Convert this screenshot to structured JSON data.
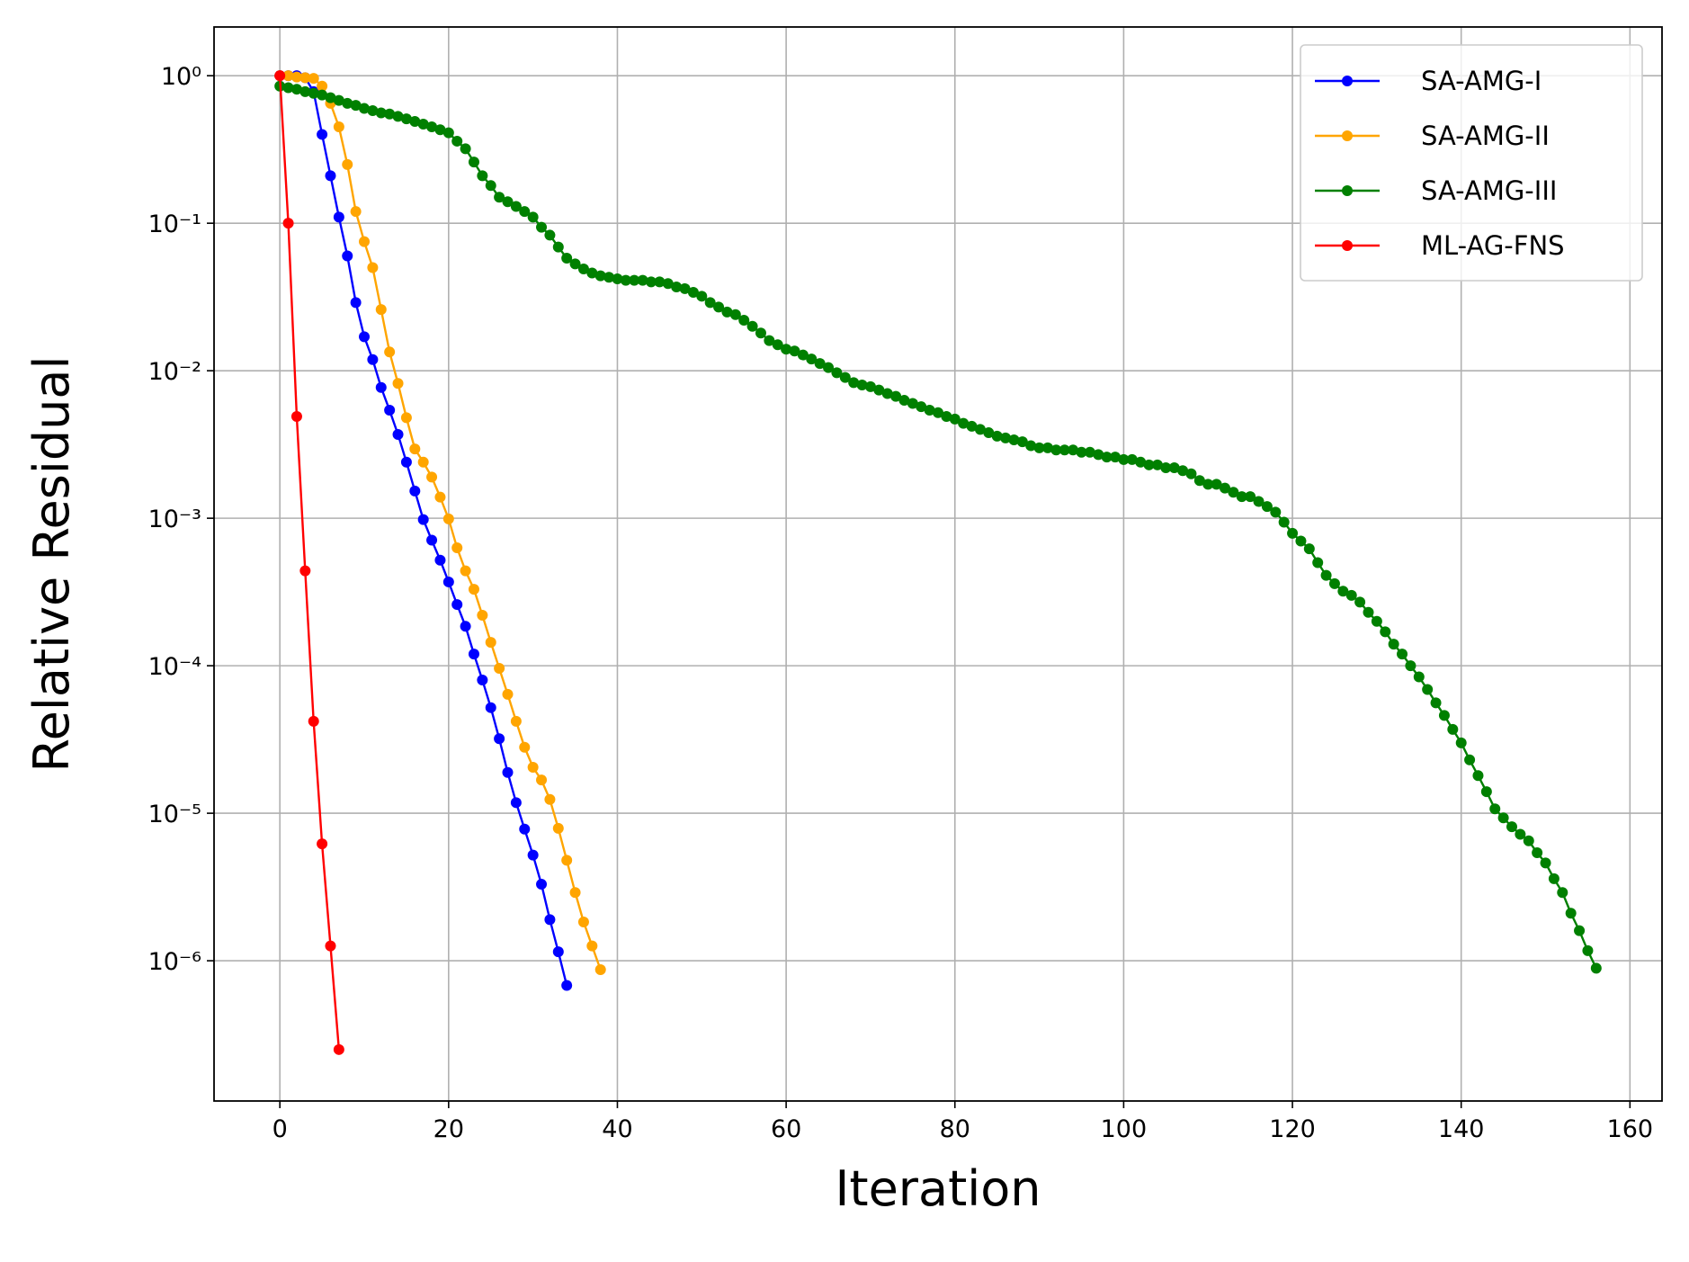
{
  "chart_data": {
    "type": "line",
    "xlabel": "Iteration",
    "ylabel": "Relative Residual",
    "xlim": [
      -7.8,
      163.8
    ],
    "ylim": [
      1.12e-07,
      2.14
    ],
    "yscale": "log",
    "grid": true,
    "legend": "upper right",
    "xticks": [
      0,
      20,
      40,
      60,
      80,
      100,
      120,
      140,
      160
    ],
    "yticks": [
      {
        "value": 1e-06,
        "label": "10⁻⁶"
      },
      {
        "value": 1e-05,
        "label": "10⁻⁵"
      },
      {
        "value": 0.0001,
        "label": "10⁻⁴"
      },
      {
        "value": 0.001,
        "label": "10⁻³"
      },
      {
        "value": 0.01,
        "label": "10⁻²"
      },
      {
        "value": 0.1,
        "label": "10⁻¹"
      },
      {
        "value": 1,
        "label": "10⁰"
      }
    ],
    "series": [
      {
        "name": "SA-AMG-I",
        "color": "#0000ff",
        "x": [
          0,
          1,
          2,
          3,
          4,
          5,
          6,
          7,
          8,
          9,
          10,
          11,
          12,
          13,
          14,
          15,
          16,
          17,
          18,
          19,
          20,
          21,
          22,
          23,
          24,
          25,
          26,
          27,
          28,
          29,
          30,
          31,
          32,
          33,
          34
        ],
        "values": [
          1,
          1,
          1,
          0.97,
          0.78,
          0.4,
          0.21,
          0.11,
          0.06,
          0.029,
          0.017,
          0.0119,
          0.0077,
          0.0054,
          0.0037,
          0.0024,
          0.00153,
          0.00098,
          0.00071,
          0.00052,
          0.00037,
          0.00026,
          0.000185,
          0.00012,
          8e-05,
          5.2e-05,
          3.2e-05,
          1.89e-05,
          1.18e-05,
          7.8e-06,
          5.2e-06,
          3.3e-06,
          1.9e-06,
          1.15e-06,
          6.8e-07
        ]
      },
      {
        "name": "SA-AMG-II",
        "color": "#ffa500",
        "x": [
          0,
          1,
          2,
          3,
          4,
          5,
          6,
          7,
          8,
          9,
          10,
          11,
          12,
          13,
          14,
          15,
          16,
          17,
          18,
          19,
          20,
          21,
          22,
          23,
          24,
          25,
          26,
          27,
          28,
          29,
          30,
          31,
          32,
          33,
          34,
          35,
          36,
          37,
          38
        ],
        "values": [
          1,
          1,
          0.98,
          0.97,
          0.96,
          0.85,
          0.65,
          0.45,
          0.25,
          0.12,
          0.075,
          0.05,
          0.026,
          0.0134,
          0.0082,
          0.0048,
          0.00295,
          0.0024,
          0.0019,
          0.00139,
          0.00099,
          0.00063,
          0.00044,
          0.00033,
          0.00022,
          0.000144,
          9.6e-05,
          6.4e-05,
          4.2e-05,
          2.8e-05,
          2.05e-05,
          1.68e-05,
          1.24e-05,
          7.9e-06,
          4.8e-06,
          2.9e-06,
          1.83e-06,
          1.26e-06,
          8.7e-07
        ]
      },
      {
        "name": "SA-AMG-III",
        "color": "#008000",
        "x": [
          0,
          1,
          2,
          3,
          4,
          5,
          6,
          7,
          8,
          9,
          10,
          11,
          12,
          13,
          14,
          15,
          16,
          17,
          18,
          19,
          20,
          21,
          22,
          23,
          24,
          25,
          26,
          27,
          28,
          29,
          30,
          31,
          32,
          33,
          34,
          35,
          36,
          37,
          38,
          39,
          40,
          41,
          42,
          43,
          44,
          45,
          46,
          47,
          48,
          49,
          50,
          51,
          52,
          53,
          54,
          55,
          56,
          57,
          58,
          59,
          60,
          61,
          62,
          63,
          64,
          65,
          66,
          67,
          68,
          69,
          70,
          71,
          72,
          73,
          74,
          75,
          76,
          77,
          78,
          79,
          80,
          81,
          82,
          83,
          84,
          85,
          86,
          87,
          88,
          89,
          90,
          91,
          92,
          93,
          94,
          95,
          96,
          97,
          98,
          99,
          100,
          101,
          102,
          103,
          104,
          105,
          106,
          107,
          108,
          109,
          110,
          111,
          112,
          113,
          114,
          115,
          116,
          117,
          118,
          119,
          120,
          121,
          122,
          123,
          124,
          125,
          126,
          127,
          128,
          129,
          130,
          131,
          132,
          133,
          134,
          135,
          136,
          137,
          138,
          139,
          140,
          141,
          142,
          143,
          144,
          145,
          146,
          147,
          148,
          149,
          150,
          151,
          152,
          153,
          154,
          155,
          156
        ],
        "values": [
          0.85,
          0.83,
          0.81,
          0.78,
          0.76,
          0.74,
          0.71,
          0.68,
          0.65,
          0.63,
          0.6,
          0.58,
          0.56,
          0.55,
          0.53,
          0.51,
          0.49,
          0.47,
          0.45,
          0.43,
          0.41,
          0.36,
          0.32,
          0.26,
          0.21,
          0.18,
          0.15,
          0.14,
          0.13,
          0.12,
          0.11,
          0.094,
          0.083,
          0.069,
          0.058,
          0.053,
          0.049,
          0.046,
          0.044,
          0.043,
          0.042,
          0.041,
          0.041,
          0.041,
          0.04,
          0.04,
          0.039,
          0.037,
          0.036,
          0.034,
          0.032,
          0.029,
          0.027,
          0.025,
          0.024,
          0.022,
          0.02,
          0.018,
          0.016,
          0.015,
          0.014,
          0.0136,
          0.0128,
          0.012,
          0.0112,
          0.0105,
          0.0097,
          0.009,
          0.0083,
          0.008,
          0.0078,
          0.0074,
          0.007,
          0.0067,
          0.0063,
          0.006,
          0.0057,
          0.0054,
          0.0052,
          0.0049,
          0.0047,
          0.0044,
          0.0042,
          0.004,
          0.0038,
          0.0036,
          0.0035,
          0.0034,
          0.0033,
          0.0031,
          0.003,
          0.003,
          0.0029,
          0.0029,
          0.0029,
          0.0028,
          0.0028,
          0.0027,
          0.0026,
          0.0026,
          0.0025,
          0.0025,
          0.0024,
          0.0023,
          0.0023,
          0.0022,
          0.0022,
          0.0021,
          0.002,
          0.0018,
          0.0017,
          0.0017,
          0.0016,
          0.0015,
          0.0014,
          0.0014,
          0.0013,
          0.0012,
          0.0011,
          0.00094,
          0.00079,
          0.0007,
          0.00062,
          0.0005,
          0.00041,
          0.00036,
          0.00032,
          0.0003,
          0.00027,
          0.00023,
          0.0002,
          0.00017,
          0.00014,
          0.00012,
          0.0001,
          8.4e-05,
          6.9e-05,
          5.6e-05,
          4.6e-05,
          3.7e-05,
          3e-05,
          2.3e-05,
          1.8e-05,
          1.4e-05,
          1.07e-05,
          9.3e-06,
          8.1e-06,
          7.2e-06,
          6.5e-06,
          5.4e-06,
          4.6e-06,
          3.6e-06,
          2.9e-06,
          2.1e-06,
          1.6e-06,
          1.17e-06,
          8.9e-07
        ]
      },
      {
        "name": "ML-AG-FNS",
        "color": "#ff0000",
        "x": [
          0,
          1,
          2,
          3,
          4,
          5,
          6,
          7
        ],
        "values": [
          1,
          0.1,
          0.0049,
          0.00044,
          4.2e-05,
          6.2e-06,
          1.26e-06,
          2.5e-07
        ]
      }
    ]
  }
}
